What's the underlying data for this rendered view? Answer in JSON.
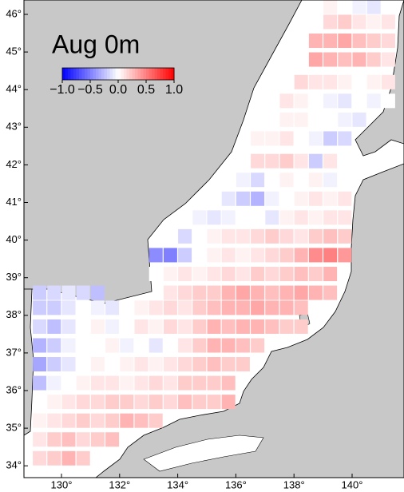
{
  "title": "Aug 0m",
  "colorbar": {
    "range": [
      -1,
      1
    ],
    "ticks": [
      {
        "value": -1,
        "label": "−1.0"
      },
      {
        "value": -0.5,
        "label": "−0.5"
      },
      {
        "value": 0,
        "label": "0.0"
      },
      {
        "value": 0.5,
        "label": "0.5"
      },
      {
        "value": 1,
        "label": "1.0"
      }
    ]
  },
  "lon_ticks": [
    {
      "value": 130,
      "label": "130°"
    },
    {
      "value": 132,
      "label": "132°"
    },
    {
      "value": 134,
      "label": "134°"
    },
    {
      "value": 136,
      "label": "136°"
    },
    {
      "value": 138,
      "label": "138°"
    },
    {
      "value": 140,
      "label": "140°"
    }
  ],
  "lat_ticks": [
    {
      "value": 34,
      "label": "34°"
    },
    {
      "value": 35,
      "label": "35°"
    },
    {
      "value": 36,
      "label": "36°"
    },
    {
      "value": 37,
      "label": "37°"
    },
    {
      "value": 38,
      "label": "38°"
    },
    {
      "value": 39,
      "label": "39°"
    },
    {
      "value": 40,
      "label": "40°"
    },
    {
      "value": 41,
      "label": "41°"
    },
    {
      "value": 42,
      "label": "42°"
    },
    {
      "value": 43,
      "label": "43°"
    },
    {
      "value": 44,
      "label": "44°"
    },
    {
      "value": 45,
      "label": "45°"
    },
    {
      "value": 46,
      "label": "46°"
    }
  ],
  "rows": [
    {
      "lat": 46.2,
      "lon0": 139.0,
      "values": [
        0.05,
        0.0,
        -0.05,
        -0.1,
        0.0
      ]
    },
    {
      "lat": 45.8,
      "lon0": 139.0,
      "values": [
        0.15,
        0.2,
        0.1,
        0.05,
        0.1
      ]
    },
    {
      "lat": 45.3,
      "lon0": 138.5,
      "values": [
        0.3,
        0.3,
        0.35,
        0.25,
        0.2,
        0.15
      ]
    },
    {
      "lat": 44.8,
      "lon0": 138.5,
      "values": [
        0.35,
        0.3,
        0.25,
        0.3,
        0.2,
        0.1
      ]
    },
    {
      "lat": 44.2,
      "lon0": 138.0,
      "values": [
        0.15,
        0.1,
        0.1,
        0.05,
        0.0,
        0.05,
        0.1
      ]
    },
    {
      "lat": 43.7,
      "lon0": 137.5,
      "values": [
        0.1,
        0.05,
        0.0,
        -0.05,
        -0.1,
        0.0,
        -0.05,
        0.0
      ]
    },
    {
      "lat": 43.2,
      "lon0": 137.0,
      "values": [
        0.0,
        0.05,
        0.05,
        0.0,
        0.0,
        -0.05,
        -0.1
      ]
    },
    {
      "lat": 42.7,
      "lon0": 136.5,
      "values": [
        0.05,
        0.05,
        0.1,
        0.0,
        -0.05,
        -0.2,
        -0.15
      ]
    },
    {
      "lat": 42.1,
      "lon0": 136.5,
      "values": [
        0.15,
        0.15,
        0.2,
        0.1,
        -0.2,
        0.1
      ]
    },
    {
      "lat": 41.6,
      "lon0": 136.0,
      "values": [
        -0.05,
        -0.15,
        0.0,
        0.05,
        0.0,
        0.05,
        -0.05
      ]
    },
    {
      "lat": 41.1,
      "lon0": 135.5,
      "values": [
        -0.1,
        -0.2,
        -0.3,
        -0.05,
        0.0,
        0.05,
        0.1,
        0.05,
        0.1
      ]
    },
    {
      "lat": 40.6,
      "lon0": 134.5,
      "values": [
        -0.05,
        -0.1,
        -0.05,
        0.0,
        0.0,
        -0.1,
        0.05,
        0.1,
        0.05,
        0.1,
        0.1
      ]
    },
    {
      "lat": 40.1,
      "lon0": 134.0,
      "values": [
        -0.15,
        0.0,
        0.05,
        0.1,
        0.1,
        0.15,
        0.2,
        0.15,
        0.1,
        0.2,
        0.25,
        0.2
      ]
    },
    {
      "lat": 39.6,
      "lon0": 133.0,
      "values": [
        -0.45,
        -0.5,
        -0.2,
        0.0,
        0.05,
        0.1,
        0.05,
        0.1,
        0.15,
        0.2,
        0.3,
        0.45,
        0.5,
        0.4
      ]
    },
    {
      "lat": 39.1,
      "lon0": 133.0,
      "values": [
        0.0,
        0.05,
        0.1,
        0.05,
        0.1,
        0.15,
        0.1,
        0.2,
        0.15,
        0.2,
        0.25,
        0.2,
        0.3
      ]
    },
    {
      "lat": 38.6,
      "lon0": 129.0,
      "values": [
        -0.2,
        -0.15,
        -0.1,
        -0.15,
        -0.25
      ]
    },
    {
      "lat": 38.6,
      "lon0": 133.5,
      "values": [
        0.1,
        0.15,
        0.2,
        0.2,
        0.3,
        0.35,
        0.3,
        0.25,
        0.3,
        0.35,
        0.3,
        0.25
      ]
    },
    {
      "lat": 38.2,
      "lon0": 129.0,
      "values": [
        -0.2,
        -0.2,
        -0.1,
        0.0,
        -0.05,
        -0.1,
        0.0,
        0.05,
        0.1,
        0.15,
        0.1,
        0.2,
        0.25,
        0.3,
        0.3,
        0.35,
        0.3,
        0.3,
        0.25
      ]
    },
    {
      "lat": 37.7,
      "lon0": 129.0,
      "values": [
        -0.15,
        -0.25,
        -0.1,
        0.0,
        0.05,
        -0.05,
        0.0,
        0.1,
        0.05,
        0.15,
        0.1,
        0.2,
        0.3,
        0.25,
        0.3,
        0.3,
        0.25,
        0.2,
        0.2
      ]
    },
    {
      "lat": 37.2,
      "lon0": 129.0,
      "values": [
        -0.3,
        -0.2,
        -0.05,
        0.0,
        0.0,
        0.05,
        -0.05,
        0.0,
        -0.1,
        0.0,
        0.1,
        0.2,
        0.3,
        0.3,
        0.25,
        0.2
      ]
    },
    {
      "lat": 36.7,
      "lon0": 129.0,
      "values": [
        -0.35,
        -0.2,
        -0.1,
        0.0,
        0.05,
        0.0,
        0.05,
        0.1,
        0.05,
        0.1,
        0.15,
        0.2,
        0.25,
        0.2,
        0.2
      ]
    },
    {
      "lat": 36.2,
      "lon0": 129.0,
      "values": [
        -0.25,
        -0.05,
        0.0,
        0.05,
        0.1,
        0.1,
        0.05,
        0.1,
        0.15,
        0.1,
        0.2,
        0.2,
        0.2,
        0.25
      ]
    },
    {
      "lat": 35.7,
      "lon0": 129.0,
      "values": [
        0.0,
        0.05,
        0.1,
        0.15,
        0.15,
        0.2,
        0.2,
        0.15,
        0.2,
        0.15,
        0.25,
        0.2,
        0.2,
        0.3
      ]
    },
    {
      "lat": 35.2,
      "lon0": 129.0,
      "values": [
        0.05,
        0.1,
        0.15,
        0.2,
        0.15,
        0.2,
        0.3,
        0.25,
        0.2
      ]
    },
    {
      "lat": 34.7,
      "lon0": 129.0,
      "values": [
        0.1,
        0.2,
        0.25,
        0.15,
        0.2,
        0.25
      ]
    },
    {
      "lat": 34.2,
      "lon0": 129.0,
      "values": [
        0.15,
        0.2,
        0.3,
        0.2
      ]
    }
  ]
}
